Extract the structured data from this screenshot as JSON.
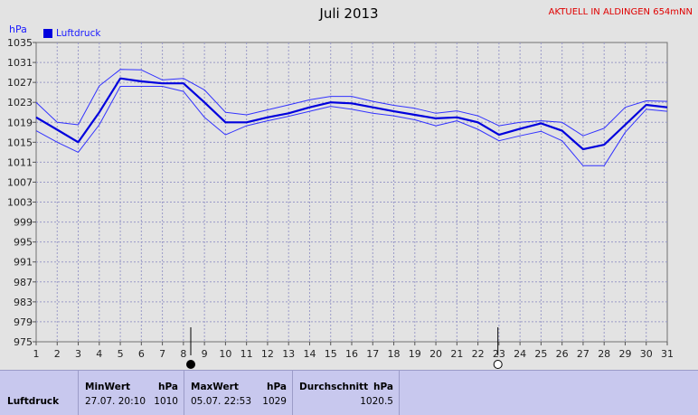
{
  "header": {
    "title": "Juli 2013",
    "notice": "AKTUELL IN ALDINGEN 654mNN",
    "unit": "hPa",
    "legend_label": "Luftdruck"
  },
  "colors": {
    "main_line": "#0000dd",
    "band_line": "#3333ff",
    "grid": "#9a9ac8",
    "notice": "#e00000",
    "panel": "#c8c8ee"
  },
  "chart_data": {
    "type": "line",
    "xlabel": "",
    "ylabel": "hPa",
    "xlim": [
      1,
      31
    ],
    "ylim": [
      975,
      1035
    ],
    "x_ticks": [
      1,
      2,
      3,
      4,
      5,
      6,
      7,
      8,
      9,
      10,
      11,
      12,
      13,
      14,
      15,
      16,
      17,
      18,
      19,
      20,
      21,
      22,
      23,
      24,
      25,
      26,
      27,
      28,
      29,
      30,
      31
    ],
    "y_ticks": [
      975,
      979,
      983,
      987,
      991,
      995,
      999,
      1003,
      1007,
      1011,
      1015,
      1019,
      1023,
      1027,
      1031,
      1035
    ],
    "grid": true,
    "legend": "top-left",
    "moon_markers": [
      {
        "day": 8.35,
        "phase": "new-moon"
      },
      {
        "day": 22.95,
        "phase": "full-moon"
      }
    ],
    "series": [
      {
        "name": "Luftdruck",
        "role": "mean",
        "x": [
          1,
          2,
          3,
          4,
          5,
          6,
          7,
          8,
          9,
          10,
          11,
          12,
          13,
          14,
          15,
          16,
          17,
          18,
          19,
          20,
          21,
          22,
          23,
          24,
          25,
          26,
          27,
          28,
          29,
          30,
          31
        ],
        "values": [
          1020,
          1017.5,
          1015,
          1021,
          1027.8,
          1027.2,
          1026.8,
          1026.8,
          1023,
          1019,
          1019,
          1020,
          1020.8,
          1022,
          1023,
          1022.8,
          1022,
          1021.2,
          1020.5,
          1019.8,
          1020,
          1019,
          1016.5,
          1017.7,
          1018.8,
          1017.3,
          1013.6,
          1014.5,
          1018.5,
          1022.5,
          1022
        ]
      },
      {
        "role": "max",
        "x": [
          1,
          2,
          3,
          4,
          5,
          6,
          7,
          8,
          9,
          10,
          11,
          12,
          13,
          14,
          15,
          16,
          17,
          18,
          19,
          20,
          21,
          22,
          23,
          24,
          25,
          26,
          27,
          28,
          29,
          30,
          31
        ],
        "values": [
          1023,
          1019,
          1018.5,
          1026.3,
          1029.6,
          1029.5,
          1027.5,
          1027.8,
          1025.5,
          1021,
          1020.5,
          1021.5,
          1022.5,
          1023.5,
          1024.2,
          1024.2,
          1023.2,
          1022.4,
          1021.8,
          1020.8,
          1021.3,
          1020.3,
          1018.3,
          1019,
          1019.3,
          1019,
          1016.3,
          1017.8,
          1022,
          1023.3,
          1023.2
        ]
      },
      {
        "role": "min",
        "x": [
          1,
          2,
          3,
          4,
          5,
          6,
          7,
          8,
          9,
          10,
          11,
          12,
          13,
          14,
          15,
          16,
          17,
          18,
          19,
          20,
          21,
          22,
          23,
          24,
          25,
          26,
          27,
          28,
          29,
          30,
          31
        ],
        "values": [
          1017.3,
          1015,
          1013,
          1018.5,
          1026.2,
          1026.2,
          1026.2,
          1025.2,
          1020,
          1016.5,
          1018.3,
          1019.3,
          1020.2,
          1021.2,
          1022.2,
          1021.6,
          1020.8,
          1020.3,
          1019.5,
          1018.3,
          1019.3,
          1017.6,
          1015.3,
          1016.3,
          1017.2,
          1015.3,
          1010.3,
          1010.3,
          1017,
          1021.6,
          1021.2
        ]
      }
    ]
  },
  "stats": {
    "row_label": "Luftdruck",
    "min_header": "MinWert",
    "min_unit": "hPa",
    "min_datetime": "27.07.  20:10",
    "min_value": "1010",
    "max_header": "MaxWert",
    "max_unit": "hPa",
    "max_datetime": "05.07.  22:53",
    "max_value": "1029",
    "avg_header": "Durchschnitt",
    "avg_unit": "hPa",
    "avg_value": "1020.5"
  }
}
